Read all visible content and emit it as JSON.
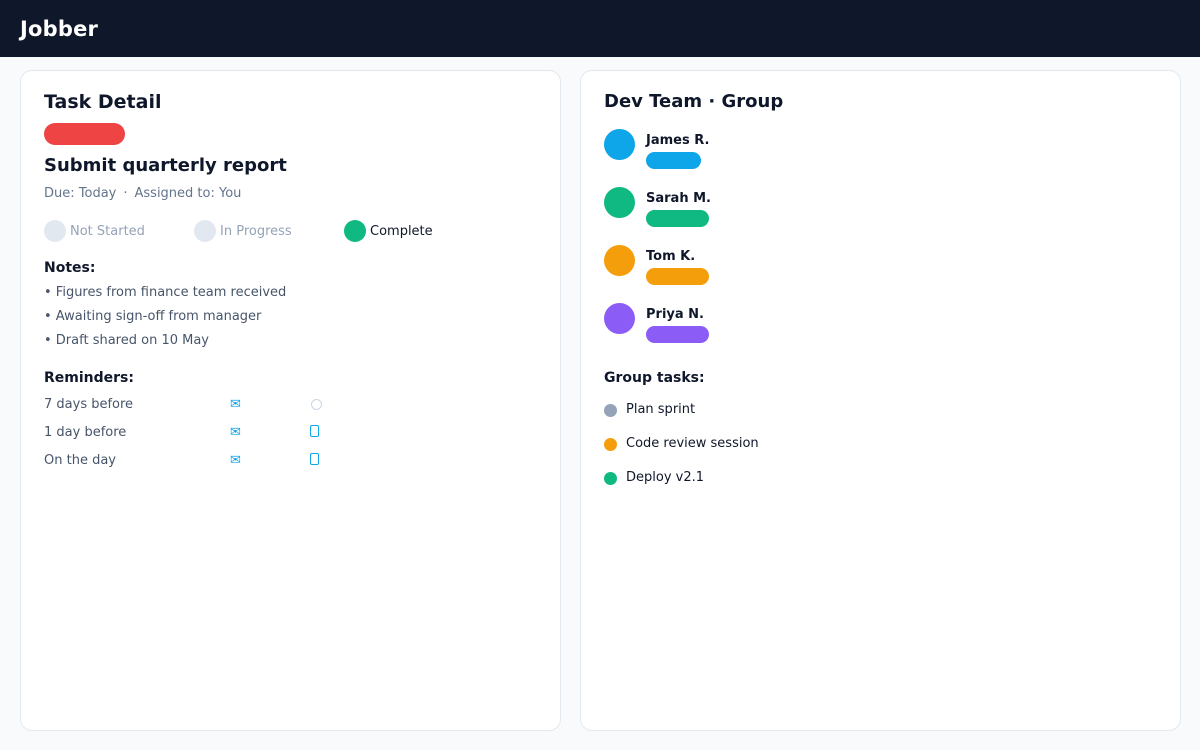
{
  "app": {
    "title": "Jobber"
  },
  "task_detail": {
    "heading": "Task Detail",
    "priority_color": "#ef4444",
    "task_name": "Submit quarterly report",
    "due": "Due: Today",
    "separator": "·",
    "assigned": "Assigned to: You",
    "status_options": [
      {
        "label": "Not Started",
        "active": false
      },
      {
        "label": "In Progress",
        "active": false
      },
      {
        "label": "Complete",
        "active": true,
        "color": "#10b981"
      }
    ],
    "notes_label": "Notes:",
    "notes": [
      "• Figures from finance team received",
      "• Awaiting sign-off from manager",
      "• Draft shared on 10 May"
    ],
    "reminders_label": "Reminders:",
    "reminders": [
      {
        "label": "7 days before",
        "email_icon": "mail-icon",
        "email_glyph": "✉",
        "bell_icon": "empty-circle-icon",
        "bell_glyph": ""
      },
      {
        "label": "1 day before",
        "email_icon": "mail-icon",
        "email_glyph": "✉",
        "bell_icon": "bell-icon",
        "bell_glyph": ""
      },
      {
        "label": "On the day",
        "email_icon": "mail-icon",
        "email_glyph": "✉",
        "bell_icon": "bell-icon",
        "bell_glyph": ""
      }
    ]
  },
  "group": {
    "heading": "Dev Team · Group",
    "members": [
      {
        "name": "James R.",
        "color": "#0ea5e9"
      },
      {
        "name": "Sarah M.",
        "color": "#10b981"
      },
      {
        "name": "Tom K.",
        "color": "#f59e0b"
      },
      {
        "name": "Priya N.",
        "color": "#8b5cf6"
      }
    ],
    "tasks_label": "Group tasks:",
    "tasks": [
      {
        "label": "Plan sprint",
        "color": "#94a3b8"
      },
      {
        "label": "Code review session",
        "color": "#f59e0b"
      },
      {
        "label": "Deploy v2.1",
        "color": "#10b981"
      }
    ]
  }
}
